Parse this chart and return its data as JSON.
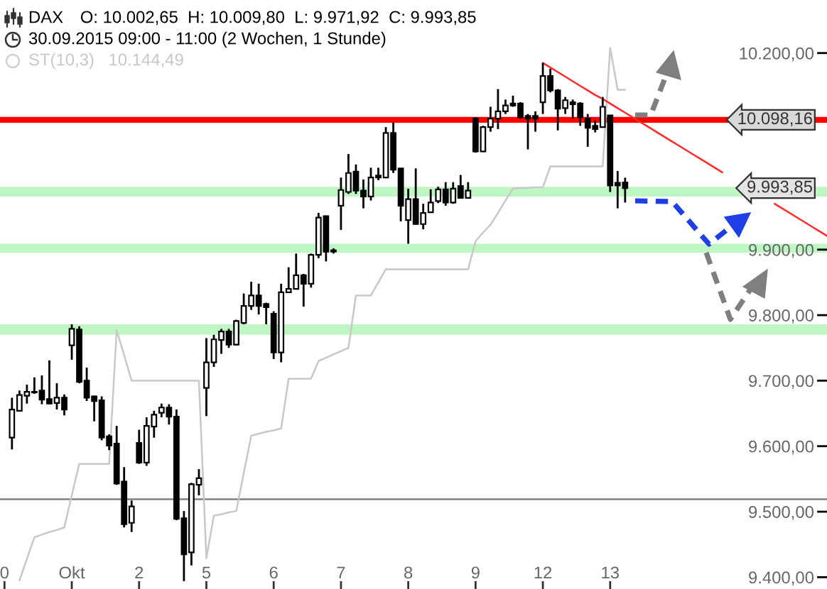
{
  "chart_data": {
    "type": "candlestick",
    "title": "DAX",
    "subtitle": "30.09.2015 09:00 - 11:00 (2 Wochen, 1 Stunde)",
    "annotations": [
      "O: 10.002,65  H: 10.009,80  L: 9.971,92  C: 9.993,85",
      "10.144,49",
      "9.993,85"
    ],
    "categories": [
      "0",
      null,
      null,
      null,
      null,
      null,
      null,
      null,
      null,
      "Okt",
      null,
      null,
      null,
      null,
      null,
      null,
      null,
      null,
      "2",
      null,
      null,
      null,
      null,
      null,
      null,
      null,
      null,
      "5",
      null,
      null,
      null,
      null,
      null,
      null,
      null,
      null,
      "6",
      null,
      null,
      null,
      null,
      null,
      null,
      null,
      null,
      "7",
      null,
      null,
      null,
      null,
      null,
      null,
      null,
      null,
      "8",
      null,
      null,
      null,
      null,
      null,
      null,
      null,
      null,
      "9",
      null,
      null,
      null,
      null,
      null,
      null,
      null,
      null,
      "12",
      null,
      null,
      null,
      null,
      null,
      null,
      null,
      null,
      "13",
      null,
      null,
      null,
      null,
      null,
      null,
      null,
      null,
      null,
      null,
      null,
      null,
      null,
      null,
      null,
      null,
      null,
      null,
      null,
      null,
      null,
      null,
      null,
      null,
      null,
      null,
      null,
      null,
      null
    ],
    "ohlc": [
      null,
      [
        9613,
        9674,
        9595,
        9656
      ],
      [
        9654,
        9685,
        9653,
        9678
      ],
      [
        9677,
        9694,
        9665,
        9683
      ],
      [
        9683,
        9705,
        9680,
        9682
      ],
      [
        9685,
        9708,
        9664,
        9671
      ],
      [
        9672,
        9731,
        9664,
        9665
      ],
      [
        9666,
        9696,
        9656,
        9674
      ],
      [
        9674,
        9679,
        9647,
        9656
      ],
      [
        9754,
        9786,
        9732,
        9779
      ],
      [
        9778,
        9783,
        9696,
        9698
      ],
      [
        9700,
        9720,
        9669,
        9674
      ],
      [
        9676,
        9677,
        9638,
        9669
      ],
      [
        9670,
        9676,
        9609,
        9613
      ],
      [
        9615,
        9618,
        9594,
        9601
      ],
      [
        9604,
        9631,
        9541,
        9543
      ],
      [
        9546,
        9568,
        9476,
        9481
      ],
      [
        9483,
        9517,
        9469,
        9508
      ],
      [
        9605,
        9625,
        9573,
        9575
      ],
      [
        9575,
        9644,
        9570,
        9631
      ],
      [
        9630,
        9654,
        9613,
        9648
      ],
      [
        9651,
        9665,
        9644,
        9659
      ],
      [
        9659,
        9664,
        9633,
        9645
      ],
      [
        9645,
        9656,
        9487,
        9489
      ],
      [
        9490,
        9501,
        9394,
        9435
      ],
      [
        9438,
        9544,
        9418,
        9542
      ],
      [
        9541,
        9565,
        9525,
        9551
      ],
      [
        9689,
        9765,
        9646,
        9728
      ],
      [
        9728,
        9770,
        9721,
        9763
      ],
      [
        9762,
        9779,
        9741,
        9775
      ],
      [
        9775,
        9779,
        9750,
        9755
      ],
      [
        9755,
        9793,
        9754,
        9791
      ],
      [
        9788,
        9833,
        9786,
        9814
      ],
      [
        9814,
        9851,
        9808,
        9830
      ],
      [
        9830,
        9848,
        9801,
        9814
      ],
      [
        9817,
        9819,
        9786,
        9812
      ],
      [
        9802,
        9806,
        9733,
        9743
      ],
      [
        9743,
        9848,
        9728,
        9835
      ],
      [
        9835,
        9873,
        9835,
        9840
      ],
      [
        9840,
        9894,
        9839,
        9861
      ],
      [
        9861,
        9863,
        9813,
        9848
      ],
      [
        9848,
        9894,
        9842,
        9892
      ],
      [
        9892,
        9956,
        9887,
        9949
      ],
      [
        9951,
        9952,
        9882,
        9897
      ],
      [
        9899,
        9902,
        9894,
        9897
      ],
      [
        9967,
        10010,
        9930,
        9991
      ],
      [
        9988,
        10046,
        9985,
        10017
      ],
      [
        10019,
        10030,
        9985,
        9990
      ],
      [
        9990,
        10007,
        9963,
        9981
      ],
      [
        9981,
        10025,
        9975,
        10010
      ],
      [
        10013,
        10025,
        10006,
        10010
      ],
      [
        10010,
        10087,
        10009,
        10078
      ],
      [
        10078,
        10094,
        10017,
        10022
      ],
      [
        10024,
        10024,
        9943,
        9967
      ],
      [
        9945,
        9993,
        9909,
        9977
      ],
      [
        9977,
        10024,
        9938,
        9939
      ],
      [
        9939,
        9970,
        9931,
        9956
      ],
      [
        9957,
        9992,
        9956,
        9972
      ],
      [
        9974,
        9996,
        9971,
        9992
      ],
      [
        9992,
        10003,
        9967,
        9972
      ],
      [
        9972,
        10003,
        9970,
        9993
      ],
      [
        9997,
        10014,
        9978,
        9979
      ],
      [
        9979,
        10003,
        9978,
        9990
      ],
      [
        10100,
        10102,
        10048,
        10050
      ],
      [
        10050,
        10089,
        10049,
        10087
      ],
      [
        10087,
        10118,
        10080,
        10100
      ],
      [
        10100,
        10145,
        10084,
        10111
      ],
      [
        10111,
        10129,
        10107,
        10120
      ],
      [
        10123,
        10135,
        10118,
        10120
      ],
      [
        10123,
        10125,
        10100,
        10102
      ],
      [
        10104,
        10107,
        10053,
        10100
      ],
      [
        10104,
        10111,
        10080,
        10100
      ],
      [
        10125,
        10185,
        10107,
        10165
      ],
      [
        10165,
        10176,
        10140,
        10143
      ],
      [
        10143,
        10145,
        10082,
        10115
      ],
      [
        10116,
        10133,
        10107,
        10128
      ],
      [
        10125,
        10129,
        10100,
        10122
      ],
      [
        10123,
        10125,
        10089,
        10102
      ],
      [
        10100,
        10107,
        10057,
        10086
      ],
      [
        10089,
        10097,
        10079,
        10084
      ],
      [
        10087,
        10133,
        10086,
        10118
      ],
      [
        10105,
        10105,
        9988,
        9998
      ],
      [
        10002,
        10020,
        9963,
        9998
      ],
      [
        10002.65,
        10009.8,
        9971.92,
        9993.85
      ],
      null,
      null,
      null,
      null,
      null,
      null,
      null,
      null,
      null,
      null,
      null,
      null,
      null,
      null,
      null,
      null,
      null,
      null,
      null,
      null,
      null,
      null,
      null,
      null,
      null,
      null,
      null
    ],
    "series": [
      {
        "name": "ST(10,3)",
        "type": "line",
        "color": "#c8c8c8",
        "values": [
          null,
          null,
          9395,
          9428,
          9461,
          9465,
          9469,
          9472,
          9476,
          9525,
          9573,
          9573,
          9573,
          9573,
          9573,
          9777,
          9739,
          9700,
          9700,
          9700,
          9700,
          9700,
          9700,
          9700,
          9700,
          9700,
          9700,
          9429,
          9494,
          9496,
          9499,
          9501,
          9559,
          9616,
          9619,
          9622,
          9624,
          9627,
          9703,
          9703,
          9703,
          9703,
          9730,
          9735,
          9740,
          9745,
          9750,
          9830,
          9830,
          9830,
          9850,
          9870,
          9870,
          9870,
          9870,
          9870,
          9870,
          9870,
          9870,
          9870,
          9870,
          9870,
          9870,
          9913,
          9926,
          9938,
          9956,
          9975,
          9993,
          9994,
          9994,
          9995,
          9995,
          10027,
          10027,
          10027,
          10027,
          10027,
          10027,
          10027,
          10027,
          10208,
          10144,
          10144,
          null,
          null,
          null,
          null,
          null,
          null,
          null,
          null,
          null,
          null,
          null,
          null,
          null,
          null,
          null,
          null,
          null,
          null,
          null,
          null,
          null,
          null,
          null,
          null,
          null,
          null,
          null
        ]
      },
      {
        "type": "line",
        "color": "#ff2a2a",
        "values": [
          null,
          null,
          null,
          null,
          null,
          null,
          null,
          null,
          null,
          null,
          null,
          null,
          null,
          null,
          null,
          null,
          null,
          null,
          null,
          null,
          null,
          null,
          null,
          null,
          null,
          null,
          null,
          null,
          null,
          null,
          null,
          null,
          null,
          null,
          null,
          null,
          null,
          null,
          null,
          null,
          null,
          null,
          null,
          null,
          null,
          null,
          null,
          null,
          null,
          null,
          null,
          null,
          null,
          null,
          null,
          null,
          null,
          null,
          null,
          null,
          null,
          null,
          null,
          null,
          null,
          null,
          null,
          null,
          null,
          null,
          null,
          null,
          10185,
          10178,
          10171,
          10164,
          10157,
          10150,
          10143,
          10136,
          10130,
          10123,
          10116,
          10109,
          10102,
          10095,
          10088,
          10081,
          10074,
          10067,
          10060,
          10053,
          10046,
          10039,
          10032,
          10025,
          10018,
          null,
          null,
          null,
          null,
          null,
          null,
          9970,
          9963,
          9956,
          9949,
          9942,
          9935,
          9928,
          9921
        ]
      }
    ],
    "ref_lines": [
      {
        "axis": "y",
        "value": 10098.16,
        "label": "10.098,16",
        "color": "#ff0000"
      },
      {
        "axis": "y",
        "value": 9519,
        "color": "#808080"
      }
    ],
    "bands": [
      {
        "axis": "y",
        "from": 9981,
        "to": 9996,
        "color": "#bff7c4"
      },
      {
        "axis": "y",
        "from": 9895,
        "to": 9909,
        "color": "#bff7c4"
      },
      {
        "axis": "y",
        "from": 9770,
        "to": 9786,
        "color": "#bff7c4"
      }
    ],
    "ylim": [
      9382,
      10281
    ],
    "yticks": [
      {
        "value": 9400,
        "label": "9.400,00"
      },
      {
        "value": 9500,
        "label": "9.500,00"
      },
      {
        "value": 9600,
        "label": "9.600,00"
      },
      {
        "value": 9700,
        "label": "9.700,00"
      },
      {
        "value": 9800,
        "label": "9.800,00"
      },
      {
        "value": 9900,
        "label": "9.900,00"
      },
      {
        "value": 10200,
        "label": "10.200,00"
      }
    ],
    "grid": false
  }
}
